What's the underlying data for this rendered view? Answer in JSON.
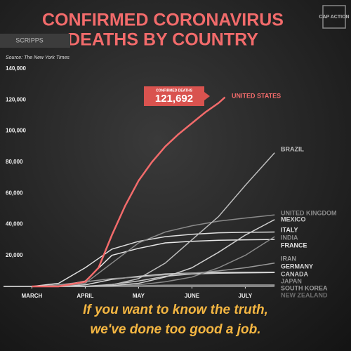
{
  "brand": "CAP ACTION",
  "network": "SCRIPPS",
  "caption": [
    "If you want to know the truth,",
    "we've done too good a job."
  ],
  "chart_data": {
    "type": "line",
    "title": [
      "CONFIRMED CORONAVIRUS",
      "DEATHS BY COUNTRY"
    ],
    "source": "Source: The New York Times",
    "annotation": {
      "label": "CONFIRMED DEATHS",
      "text": "121,692"
    },
    "xlim": [
      -0.4,
      4.6
    ],
    "xticks": [
      {
        "value": 0,
        "label": "MARCH"
      },
      {
        "value": 1,
        "label": "APRIL"
      },
      {
        "value": 2,
        "label": "MAY"
      },
      {
        "value": 3,
        "label": "JUNE"
      },
      {
        "value": 4,
        "label": "JULY"
      }
    ],
    "ylim": [
      0,
      140000
    ],
    "yticks": [
      {
        "value": 20000,
        "label": "20,000"
      },
      {
        "value": 40000,
        "label": "40,000"
      },
      {
        "value": 60000,
        "label": "60,000"
      },
      {
        "value": 80000,
        "label": "80,000"
      },
      {
        "value": 100000,
        "label": "100,000"
      },
      {
        "value": 120000,
        "label": "120,000"
      },
      {
        "value": 140000,
        "label": "140,000"
      }
    ],
    "series": [
      {
        "name": "UNITED STATES",
        "color": "#f26b6b",
        "x": [
          0,
          0.5,
          1,
          1.25,
          1.5,
          1.75,
          2,
          2.25,
          2.5,
          2.75,
          3,
          3.25,
          3.5,
          3.62
        ],
        "values": [
          0,
          0,
          3000,
          12000,
          33000,
          52000,
          68000,
          80000,
          90000,
          98000,
          105000,
          112000,
          118000,
          121692
        ]
      },
      {
        "name": "BRAZIL",
        "color": "#bdbdbd",
        "x": [
          0,
          0.5,
          1,
          1.5,
          2,
          2.5,
          3,
          3.5,
          4,
          4.55
        ],
        "values": [
          0,
          0,
          0,
          1000,
          5000,
          15000,
          30000,
          45000,
          65000,
          86000
        ]
      },
      {
        "name": "UNITED KINGDOM",
        "color": "#8a8a8a",
        "x": [
          0,
          0.5,
          1,
          1.5,
          2,
          2.5,
          3,
          3.5,
          4,
          4.55
        ],
        "values": [
          0,
          0,
          2000,
          15000,
          28000,
          35000,
          39000,
          42000,
          44000,
          46000
        ]
      },
      {
        "name": "MEXICO",
        "color": "#d0d0d0",
        "x": [
          0,
          0.5,
          1,
          1.5,
          2,
          2.5,
          3,
          3.5,
          4,
          4.55
        ],
        "values": [
          0,
          0,
          0,
          500,
          2000,
          6000,
          12000,
          22000,
          33000,
          43000
        ]
      },
      {
        "name": "ITALY",
        "color": "#e0e0e0",
        "x": [
          0,
          0.5,
          1,
          1.5,
          2,
          2.5,
          3,
          3.5,
          4,
          4.55
        ],
        "values": [
          0,
          2000,
          12000,
          24000,
          29000,
          32000,
          33500,
          34500,
          34800,
          35000
        ]
      },
      {
        "name": "INDIA",
        "color": "#8a8a8a",
        "x": [
          0,
          0.5,
          1,
          1.5,
          2,
          2.5,
          3,
          3.5,
          4,
          4.55
        ],
        "values": [
          0,
          0,
          0,
          200,
          1000,
          3000,
          6000,
          12000,
          20000,
          32000
        ]
      },
      {
        "name": "FRANCE",
        "color": "#e8e8e8",
        "x": [
          0,
          0.5,
          1,
          1.5,
          2,
          2.5,
          3,
          3.5,
          4,
          4.55
        ],
        "values": [
          0,
          100,
          3500,
          20000,
          24500,
          28000,
          29000,
          29700,
          30000,
          30200
        ]
      },
      {
        "name": "IRAN",
        "color": "#9a9a9a",
        "x": [
          0,
          0.5,
          1,
          1.5,
          2,
          2.5,
          3,
          3.5,
          4,
          4.55
        ],
        "values": [
          0,
          1000,
          3000,
          5000,
          6000,
          7500,
          8500,
          10000,
          12000,
          15000
        ]
      },
      {
        "name": "GERMANY",
        "color": "#d8d8d8",
        "x": [
          0,
          0.5,
          1,
          1.5,
          2,
          2.5,
          3,
          3.5,
          4,
          4.55
        ],
        "values": [
          0,
          0,
          1000,
          4500,
          6500,
          8000,
          8600,
          9000,
          9100,
          9150
        ]
      },
      {
        "name": "CANADA",
        "color": "#c8c8c8",
        "x": [
          0,
          0.5,
          1,
          1.5,
          2,
          2.5,
          3,
          3.5,
          4,
          4.55
        ],
        "values": [
          0,
          0,
          100,
          1200,
          3500,
          6500,
          8000,
          8500,
          8700,
          8900
        ]
      },
      {
        "name": "JAPAN",
        "color": "#8a8a8a",
        "x": [
          0,
          0.5,
          1,
          1.5,
          2,
          2.5,
          3,
          3.5,
          4,
          4.55
        ],
        "values": [
          0,
          0,
          50,
          200,
          400,
          850,
          900,
          950,
          1000,
          1000
        ]
      },
      {
        "name": "SOUTH KOREA",
        "color": "#9a9a9a",
        "x": [
          0,
          0.5,
          1,
          1.5,
          2,
          2.5,
          3,
          3.5,
          4,
          4.55
        ],
        "values": [
          0,
          0,
          150,
          200,
          250,
          260,
          270,
          280,
          290,
          300
        ]
      },
      {
        "name": "NEW ZEALAND",
        "color": "#6e6e6e",
        "x": [
          0,
          0.5,
          1,
          1.5,
          2,
          2.5,
          3,
          3.5,
          4,
          4.55
        ],
        "values": [
          0,
          0,
          0,
          5,
          15,
          20,
          22,
          22,
          22,
          22
        ]
      }
    ]
  }
}
